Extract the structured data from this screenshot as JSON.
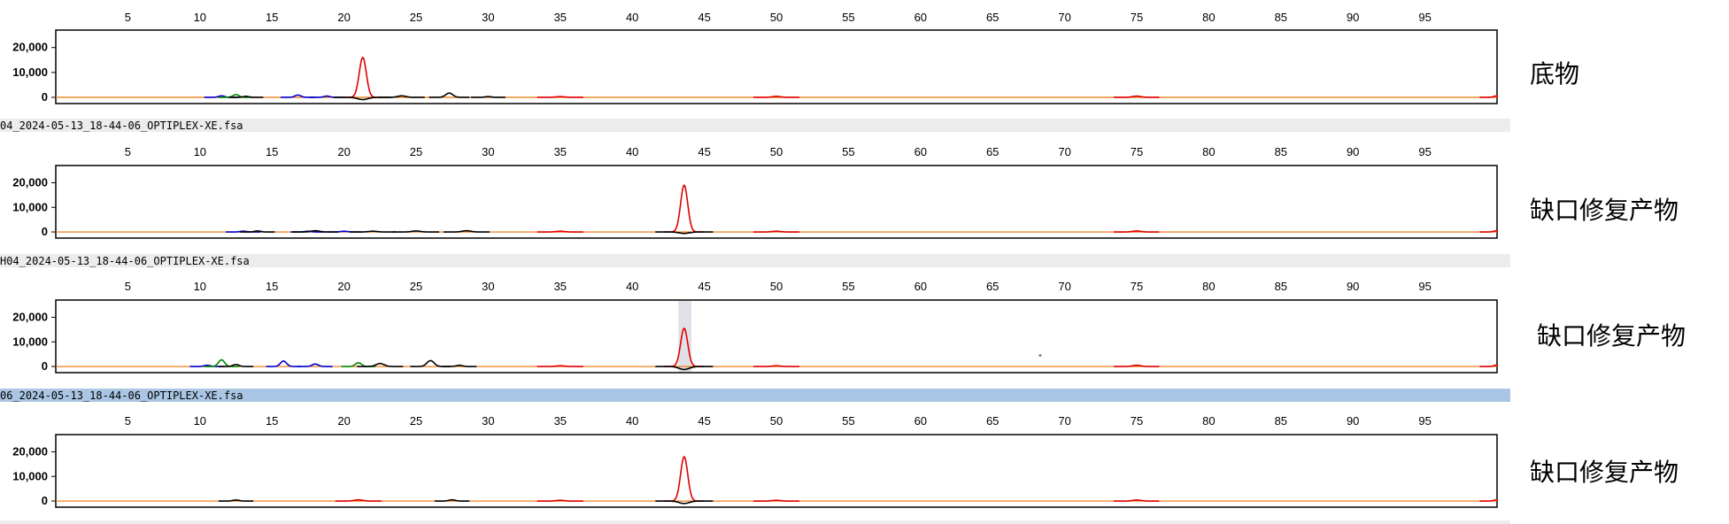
{
  "chart_data": [
    {
      "type": "line",
      "label": "底物",
      "file_bar": "",
      "x_ticks": [
        5,
        10,
        15,
        20,
        25,
        30,
        35,
        40,
        45,
        50,
        55,
        60,
        65,
        70,
        75,
        80,
        85,
        90,
        95
      ],
      "y_ticks": [
        "20,000",
        "10,000",
        "0"
      ],
      "xlim": [
        0,
        100
      ],
      "ylim": [
        -2500,
        27000
      ],
      "series": [
        {
          "color": "#e00000",
          "peaks": [
            [
              21.3,
              16000,
              0.35
            ],
            [
              35,
              300,
              0.4
            ],
            [
              50,
              400,
              0.4
            ],
            [
              75,
              500,
              0.4
            ],
            [
              100,
              600,
              0.3
            ]
          ]
        },
        {
          "color": "#0000cc",
          "peaks": [
            [
              11.5,
              600,
              0.3
            ],
            [
              16.8,
              900,
              0.3
            ],
            [
              18.8,
              500,
              0.3
            ]
          ]
        },
        {
          "color": "#008800",
          "peaks": [
            [
              12.5,
              1100,
              0.3
            ]
          ]
        },
        {
          "color": "#000000",
          "peaks": [
            [
              13.2,
              400,
              0.3
            ],
            [
              24,
              600,
              0.4
            ],
            [
              27.3,
              1700,
              0.35
            ],
            [
              30,
              300,
              0.3
            ],
            [
              21.3,
              -900,
              0.5
            ]
          ]
        }
      ]
    },
    {
      "type": "line",
      "label": "缺口修复产物",
      "file_bar": "04_2024-05-13_18-44-06_OPTIPLEX-XE.fsa",
      "x_ticks": [
        5,
        10,
        15,
        20,
        25,
        30,
        35,
        40,
        45,
        50,
        55,
        60,
        65,
        70,
        75,
        80,
        85,
        90,
        95
      ],
      "y_ticks": [
        "20,000",
        "10,000",
        "0"
      ],
      "xlim": [
        0,
        100
      ],
      "ylim": [
        -2500,
        27000
      ],
      "series": [
        {
          "color": "#e00000",
          "peaks": [
            [
              43.6,
              19000,
              0.35
            ],
            [
              35,
              300,
              0.4
            ],
            [
              50,
              300,
              0.4
            ],
            [
              75,
              400,
              0.4
            ],
            [
              100,
              500,
              0.3
            ]
          ]
        },
        {
          "color": "#0000cc",
          "peaks": [
            [
              13,
              300,
              0.3
            ],
            [
              17.5,
              300,
              0.3
            ],
            [
              20,
              300,
              0.3
            ]
          ]
        },
        {
          "color": "#000000",
          "peaks": [
            [
              14,
              400,
              0.3
            ],
            [
              18,
              500,
              0.4
            ],
            [
              22,
              300,
              0.4
            ],
            [
              25,
              400,
              0.4
            ],
            [
              28.5,
              500,
              0.4
            ],
            [
              43.6,
              -600,
              0.5
            ]
          ]
        }
      ]
    },
    {
      "type": "line",
      "label": "缺口修复产物",
      "file_bar": "H04_2024-05-13_18-44-06_OPTIPLEX-XE.fsa",
      "x_ticks": [
        5,
        10,
        15,
        20,
        25,
        30,
        35,
        40,
        45,
        50,
        55,
        60,
        65,
        70,
        75,
        80,
        85,
        90,
        95
      ],
      "y_ticks": [
        "20,000",
        "10,000",
        "0"
      ],
      "xlim": [
        0,
        100
      ],
      "ylim": [
        -2500,
        27000
      ],
      "series": [
        {
          "color": "#e00000",
          "peaks": [
            [
              43.6,
              15500,
              0.35
            ],
            [
              35,
              300,
              0.4
            ],
            [
              50,
              300,
              0.4
            ],
            [
              75,
              500,
              0.4
            ],
            [
              100,
              600,
              0.3
            ]
          ]
        },
        {
          "color": "#0000cc",
          "peaks": [
            [
              10.5,
              500,
              0.3
            ],
            [
              15.8,
              2200,
              0.3
            ],
            [
              18,
              1000,
              0.3
            ]
          ]
        },
        {
          "color": "#008800",
          "peaks": [
            [
              11.5,
              2700,
              0.3
            ],
            [
              21,
              1500,
              0.3
            ]
          ]
        },
        {
          "color": "#000000",
          "peaks": [
            [
              12.5,
              800,
              0.3
            ],
            [
              22.5,
              1200,
              0.4
            ],
            [
              26,
              2400,
              0.35
            ],
            [
              28,
              500,
              0.3
            ],
            [
              43.6,
              -1200,
              0.5
            ]
          ]
        }
      ]
    },
    {
      "type": "line",
      "label": "缺口修复产物",
      "file_bar": "06_2024-05-13_18-44-06_OPTIPLEX-XE.fsa",
      "x_ticks": [
        5,
        10,
        15,
        20,
        25,
        30,
        35,
        40,
        45,
        50,
        55,
        60,
        65,
        70,
        75,
        80,
        85,
        90,
        95
      ],
      "y_ticks": [
        "20,000",
        "10,000",
        "0"
      ],
      "xlim": [
        0,
        100
      ],
      "ylim": [
        -2500,
        27000
      ],
      "series": [
        {
          "color": "#e00000",
          "peaks": [
            [
              43.6,
              18000,
              0.35
            ],
            [
              21,
              500,
              0.4
            ],
            [
              35,
              300,
              0.4
            ],
            [
              50,
              300,
              0.4
            ],
            [
              75,
              400,
              0.4
            ],
            [
              100,
              500,
              0.3
            ]
          ]
        },
        {
          "color": "#000000",
          "peaks": [
            [
              12.5,
              400,
              0.3
            ],
            [
              27.5,
              500,
              0.3
            ],
            [
              43.6,
              -1000,
              0.5
            ]
          ]
        }
      ]
    }
  ]
}
